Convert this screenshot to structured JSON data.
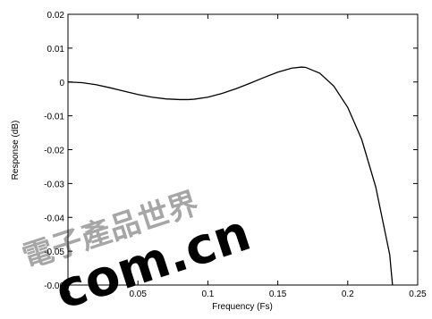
{
  "chart_data": {
    "type": "line",
    "xlabel": "Frequency (Fs)",
    "ylabel": "Response (dB)",
    "xlim": [
      0,
      0.25
    ],
    "ylim": [
      -0.06,
      0.02
    ],
    "x_ticks": [
      "0",
      "0.05",
      "0.1",
      "0.15",
      "0.2",
      "0.25"
    ],
    "y_ticks": [
      "0.02",
      "0.01",
      "0",
      "-0.01",
      "-0.02",
      "-0.03",
      "-0.04",
      "-0.05",
      "-0.06"
    ],
    "grid": false,
    "series": [
      {
        "x": [
          0,
          0.01,
          0.02,
          0.03,
          0.04,
          0.05,
          0.06,
          0.07,
          0.08,
          0.086,
          0.09,
          0.1,
          0.11,
          0.12,
          0.13,
          0.14,
          0.15,
          0.16,
          0.167,
          0.17,
          0.18,
          0.19,
          0.2,
          0.21,
          0.22,
          0.23,
          0.232
        ],
        "y": [
          0,
          -0.0002,
          -0.0008,
          -0.0017,
          -0.0027,
          -0.0037,
          -0.0045,
          -0.005,
          -0.0052,
          -0.0052,
          -0.0051,
          -0.0045,
          -0.0034,
          -0.002,
          -0.0004,
          0.0013,
          0.0029,
          0.0041,
          0.0044,
          0.0043,
          0.0026,
          -0.0012,
          -0.0075,
          -0.017,
          -0.031,
          -0.051,
          -0.06
        ],
        "color": "#000000"
      }
    ]
  },
  "watermark": {
    "cjk_text": "電子產品世界",
    "latin_text": "com.cn",
    "color": "#e8271c"
  }
}
